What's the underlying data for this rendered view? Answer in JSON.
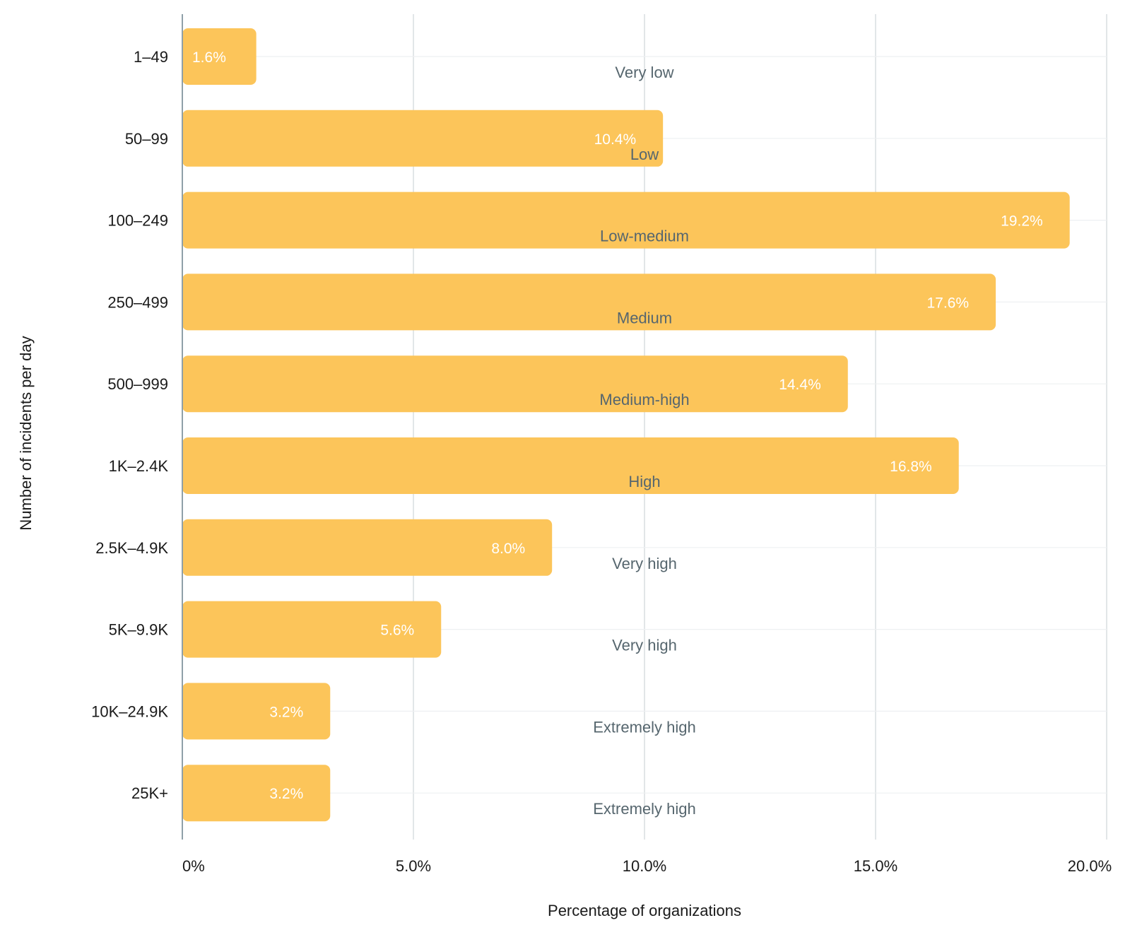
{
  "chart_data": {
    "type": "bar",
    "orientation": "horizontal",
    "categories": [
      "1–49",
      "50–99",
      "100–249",
      "250–499",
      "500–999",
      "1K–2.4K",
      "2.5K–4.9K",
      "5K–9.9K",
      "10K–24.9K",
      "25K+"
    ],
    "values": [
      1.6,
      10.4,
      19.2,
      17.6,
      14.4,
      16.8,
      8.0,
      5.6,
      3.2,
      3.2
    ],
    "value_labels": [
      "1.6%",
      "10.4%",
      "19.2%",
      "17.6%",
      "14.4%",
      "16.8%",
      "8.0%",
      "5.6%",
      "3.2%",
      "3.2%"
    ],
    "level_labels": [
      "Very low",
      "Low",
      "Low-medium",
      "Medium",
      "Medium-high",
      "High",
      "Very high",
      "Very high",
      "Extremely high",
      "Extremely high"
    ],
    "xlabel": "Percentage of organizations",
    "ylabel": "Number of incidents per day",
    "xlim": [
      0,
      20
    ],
    "xticks": [
      0,
      5,
      10,
      15,
      20
    ],
    "xtick_labels": [
      "0%",
      "5.0%",
      "10.0%",
      "15.0%",
      "20.0%"
    ],
    "grid": true,
    "bar_color": "#fcc55a"
  }
}
